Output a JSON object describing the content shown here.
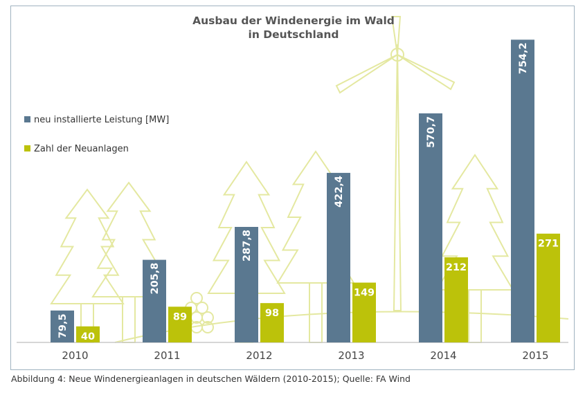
{
  "chart_data": {
    "type": "bar",
    "title_line1": "Ausbau der Windenergie im Wald",
    "title_line2": "in Deutschland",
    "categories": [
      "2010",
      "2011",
      "2012",
      "2013",
      "2014",
      "2015"
    ],
    "series": [
      {
        "name": "neu installierte Leistung [MW]",
        "values": [
          79.5,
          205.8,
          287.8,
          422.4,
          570.7,
          754.2
        ],
        "labels": [
          "79,5",
          "205,8",
          "287,8",
          "422,4",
          "570,7",
          "754,2"
        ],
        "color": "#5a7890"
      },
      {
        "name": "Zahl der Neuanlagen",
        "values": [
          40,
          89,
          98,
          149,
          212,
          271
        ],
        "labels": [
          "40",
          "89",
          "98",
          "149",
          "212",
          "271"
        ],
        "color": "#bcc20a"
      }
    ],
    "ylim": [
      0,
      760
    ],
    "legend_position": "left",
    "grid": false
  },
  "caption": "Abbildung 4: Neue Windenergieanlagen in deutschen Wäldern (2010-2015); Quelle: FA Wind",
  "colors": {
    "tree_outline": "#e4e8a0",
    "frame": "#9fb2c0",
    "axis": "#c9c9c9",
    "year_text": "#444444"
  }
}
